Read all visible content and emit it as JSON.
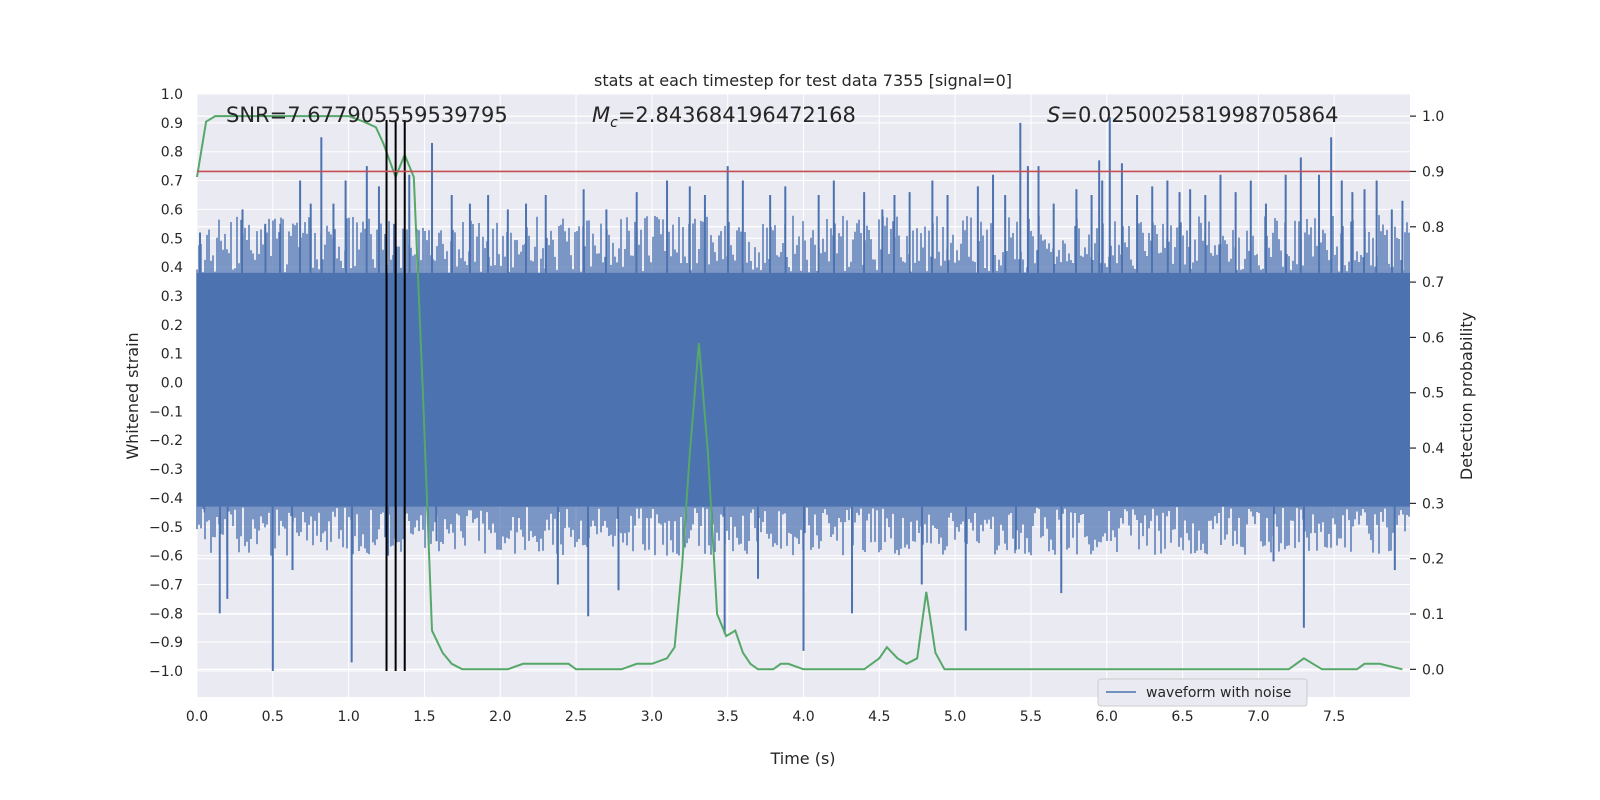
{
  "chart_data": {
    "type": "line",
    "title": "stats at each timestep for test data 7355 [signal=0]",
    "xlabel": "Time (s)",
    "ylabel_left": "Whitened strain",
    "ylabel_right": "Detection probability",
    "xlim": [
      0.0,
      8.0
    ],
    "ylim_left": [
      -1.09,
      1.0
    ],
    "ylim_right": [
      -0.05,
      1.04
    ],
    "x_ticks": [
      "0.0",
      "0.5",
      "1.0",
      "1.5",
      "2.0",
      "2.5",
      "3.0",
      "3.5",
      "4.0",
      "4.5",
      "5.0",
      "5.5",
      "6.0",
      "6.5",
      "7.0",
      "7.5"
    ],
    "y_ticks_left": [
      "1.0",
      "0.9",
      "0.8",
      "0.7",
      "0.6",
      "0.5",
      "0.4",
      "0.3",
      "0.2",
      "0.1",
      "0.0",
      "−0.1",
      "−0.2",
      "−0.3",
      "−0.4",
      "−0.5",
      "−0.6",
      "−0.7",
      "−0.8",
      "−0.9",
      "−1.0"
    ],
    "y_ticks_right": [
      "1.0",
      "0.9",
      "0.8",
      "0.7",
      "0.6",
      "0.5",
      "0.4",
      "0.3",
      "0.2",
      "0.1",
      "0.0"
    ],
    "grid": true,
    "legend": {
      "placement": "bottom-right",
      "entries": [
        "waveform with noise"
      ]
    },
    "annotations": {
      "snr": "SNR=7.677905559539795",
      "mc_symbol": "M",
      "mc_sub": "c",
      "mc_value": "=2.843684196472168",
      "s_symbol": "S",
      "s_value": "=0.025002581998705864"
    },
    "threshold": {
      "axis": "right",
      "value": 0.9,
      "color": "#c44e52"
    },
    "vlines": [
      1.25,
      1.31,
      1.37
    ],
    "waveform": {
      "name": "waveform with noise",
      "color": "#4c72b0",
      "band": [
        -0.43,
        0.38
      ],
      "spikes": [
        [
          0.02,
          0.52
        ],
        [
          0.05,
          -0.45
        ],
        [
          0.15,
          -0.8
        ],
        [
          0.2,
          -0.75
        ],
        [
          0.3,
          0.6
        ],
        [
          0.45,
          0.55
        ],
        [
          0.5,
          -1.0
        ],
        [
          0.55,
          0.55
        ],
        [
          0.63,
          -0.65
        ],
        [
          0.68,
          0.7
        ],
        [
          0.75,
          0.62
        ],
        [
          0.82,
          0.85
        ],
        [
          0.9,
          0.62
        ],
        [
          0.98,
          0.7
        ],
        [
          1.02,
          -0.97
        ],
        [
          1.12,
          0.75
        ],
        [
          1.2,
          0.68
        ],
        [
          1.26,
          -0.6
        ],
        [
          1.3,
          0.55
        ],
        [
          1.4,
          0.72
        ],
        [
          1.55,
          0.83
        ],
        [
          1.58,
          -0.55
        ],
        [
          1.68,
          0.65
        ],
        [
          1.8,
          0.62
        ],
        [
          1.92,
          0.65
        ],
        [
          2.05,
          0.6
        ],
        [
          2.17,
          0.62
        ],
        [
          2.3,
          0.65
        ],
        [
          2.38,
          -0.7
        ],
        [
          2.55,
          0.67
        ],
        [
          2.58,
          -0.81
        ],
        [
          2.7,
          0.6
        ],
        [
          2.78,
          -0.72
        ],
        [
          2.9,
          0.66
        ],
        [
          3.1,
          0.7
        ],
        [
          3.25,
          0.68
        ],
        [
          3.35,
          0.65
        ],
        [
          3.48,
          -0.87
        ],
        [
          3.5,
          0.75
        ],
        [
          3.6,
          0.7
        ],
        [
          3.7,
          -0.68
        ],
        [
          3.78,
          0.65
        ],
        [
          3.88,
          0.68
        ],
        [
          4.0,
          -0.93
        ],
        [
          4.1,
          0.65
        ],
        [
          4.2,
          0.7
        ],
        [
          4.32,
          -0.8
        ],
        [
          4.4,
          0.66
        ],
        [
          4.52,
          0.6
        ],
        [
          4.6,
          0.65
        ],
        [
          4.7,
          0.66
        ],
        [
          4.78,
          -0.7
        ],
        [
          4.85,
          0.7
        ],
        [
          4.95,
          0.65
        ],
        [
          5.07,
          -0.86
        ],
        [
          5.15,
          0.68
        ],
        [
          5.25,
          0.72
        ],
        [
          5.33,
          0.65
        ],
        [
          5.4,
          -0.58
        ],
        [
          5.43,
          0.9
        ],
        [
          5.48,
          0.75
        ],
        [
          5.55,
          0.75
        ],
        [
          5.65,
          0.62
        ],
        [
          5.7,
          -0.73
        ],
        [
          5.8,
          0.67
        ],
        [
          5.9,
          0.65
        ],
        [
          5.95,
          0.77
        ],
        [
          5.97,
          0.7
        ],
        [
          6.02,
          0.92
        ],
        [
          6.1,
          0.76
        ],
        [
          6.2,
          0.65
        ],
        [
          6.3,
          0.68
        ],
        [
          6.4,
          0.7
        ],
        [
          6.48,
          0.66
        ],
        [
          6.55,
          0.67
        ],
        [
          6.65,
          0.65
        ],
        [
          6.75,
          0.72
        ],
        [
          6.85,
          0.66
        ],
        [
          6.95,
          0.7
        ],
        [
          7.05,
          0.62
        ],
        [
          7.1,
          -0.62
        ],
        [
          7.18,
          0.72
        ],
        [
          7.28,
          0.78
        ],
        [
          7.3,
          -0.85
        ],
        [
          7.4,
          0.72
        ],
        [
          7.48,
          0.85
        ],
        [
          7.55,
          0.7
        ],
        [
          7.62,
          0.66
        ],
        [
          7.7,
          0.67
        ],
        [
          7.78,
          0.7
        ],
        [
          7.88,
          0.6
        ],
        [
          7.9,
          -0.65
        ],
        [
          7.95,
          0.63
        ]
      ]
    },
    "probability": {
      "color": "#55a868",
      "x": [
        0.0,
        0.06,
        0.12,
        0.18,
        0.3,
        0.5,
        0.7,
        0.9,
        1.0,
        1.1,
        1.18,
        1.23,
        1.31,
        1.37,
        1.43,
        1.49,
        1.55,
        1.62,
        1.68,
        1.75,
        1.85,
        1.95,
        2.05,
        2.15,
        2.25,
        2.35,
        2.45,
        2.5,
        2.6,
        2.7,
        2.8,
        2.9,
        3.0,
        3.1,
        3.15,
        3.2,
        3.25,
        3.31,
        3.37,
        3.43,
        3.49,
        3.55,
        3.6,
        3.65,
        3.7,
        3.75,
        3.8,
        3.85,
        3.9,
        4.0,
        4.1,
        4.2,
        4.3,
        4.4,
        4.5,
        4.55,
        4.62,
        4.68,
        4.75,
        4.81,
        4.87,
        4.93,
        5.0,
        5.1,
        5.2,
        5.4,
        5.6,
        5.8,
        6.0,
        6.1,
        6.2,
        6.3,
        6.4,
        6.6,
        6.8,
        7.0,
        7.1,
        7.2,
        7.25,
        7.3,
        7.36,
        7.42,
        7.48,
        7.55,
        7.65,
        7.7,
        7.8,
        7.95
      ],
      "y": [
        0.89,
        0.99,
        1.0,
        1.0,
        1.0,
        1.0,
        1.0,
        1.0,
        1.0,
        0.99,
        0.98,
        0.95,
        0.89,
        0.93,
        0.89,
        0.5,
        0.07,
        0.03,
        0.01,
        0.0,
        0.0,
        0.0,
        0.0,
        0.01,
        0.01,
        0.01,
        0.01,
        0.0,
        0.0,
        0.0,
        0.0,
        0.01,
        0.01,
        0.02,
        0.04,
        0.19,
        0.39,
        0.59,
        0.39,
        0.1,
        0.06,
        0.07,
        0.03,
        0.01,
        0.0,
        0.0,
        0.0,
        0.01,
        0.01,
        0.0,
        0.0,
        0.0,
        0.0,
        0.0,
        0.02,
        0.04,
        0.02,
        0.01,
        0.02,
        0.14,
        0.03,
        0.0,
        0.0,
        0.0,
        0.0,
        0.0,
        0.0,
        0.0,
        0.0,
        0.0,
        0.0,
        0.0,
        0.0,
        0.0,
        0.0,
        0.0,
        0.0,
        0.0,
        0.01,
        0.02,
        0.01,
        0.0,
        0.0,
        0.0,
        0.0,
        0.01,
        0.01,
        0.0
      ]
    }
  }
}
